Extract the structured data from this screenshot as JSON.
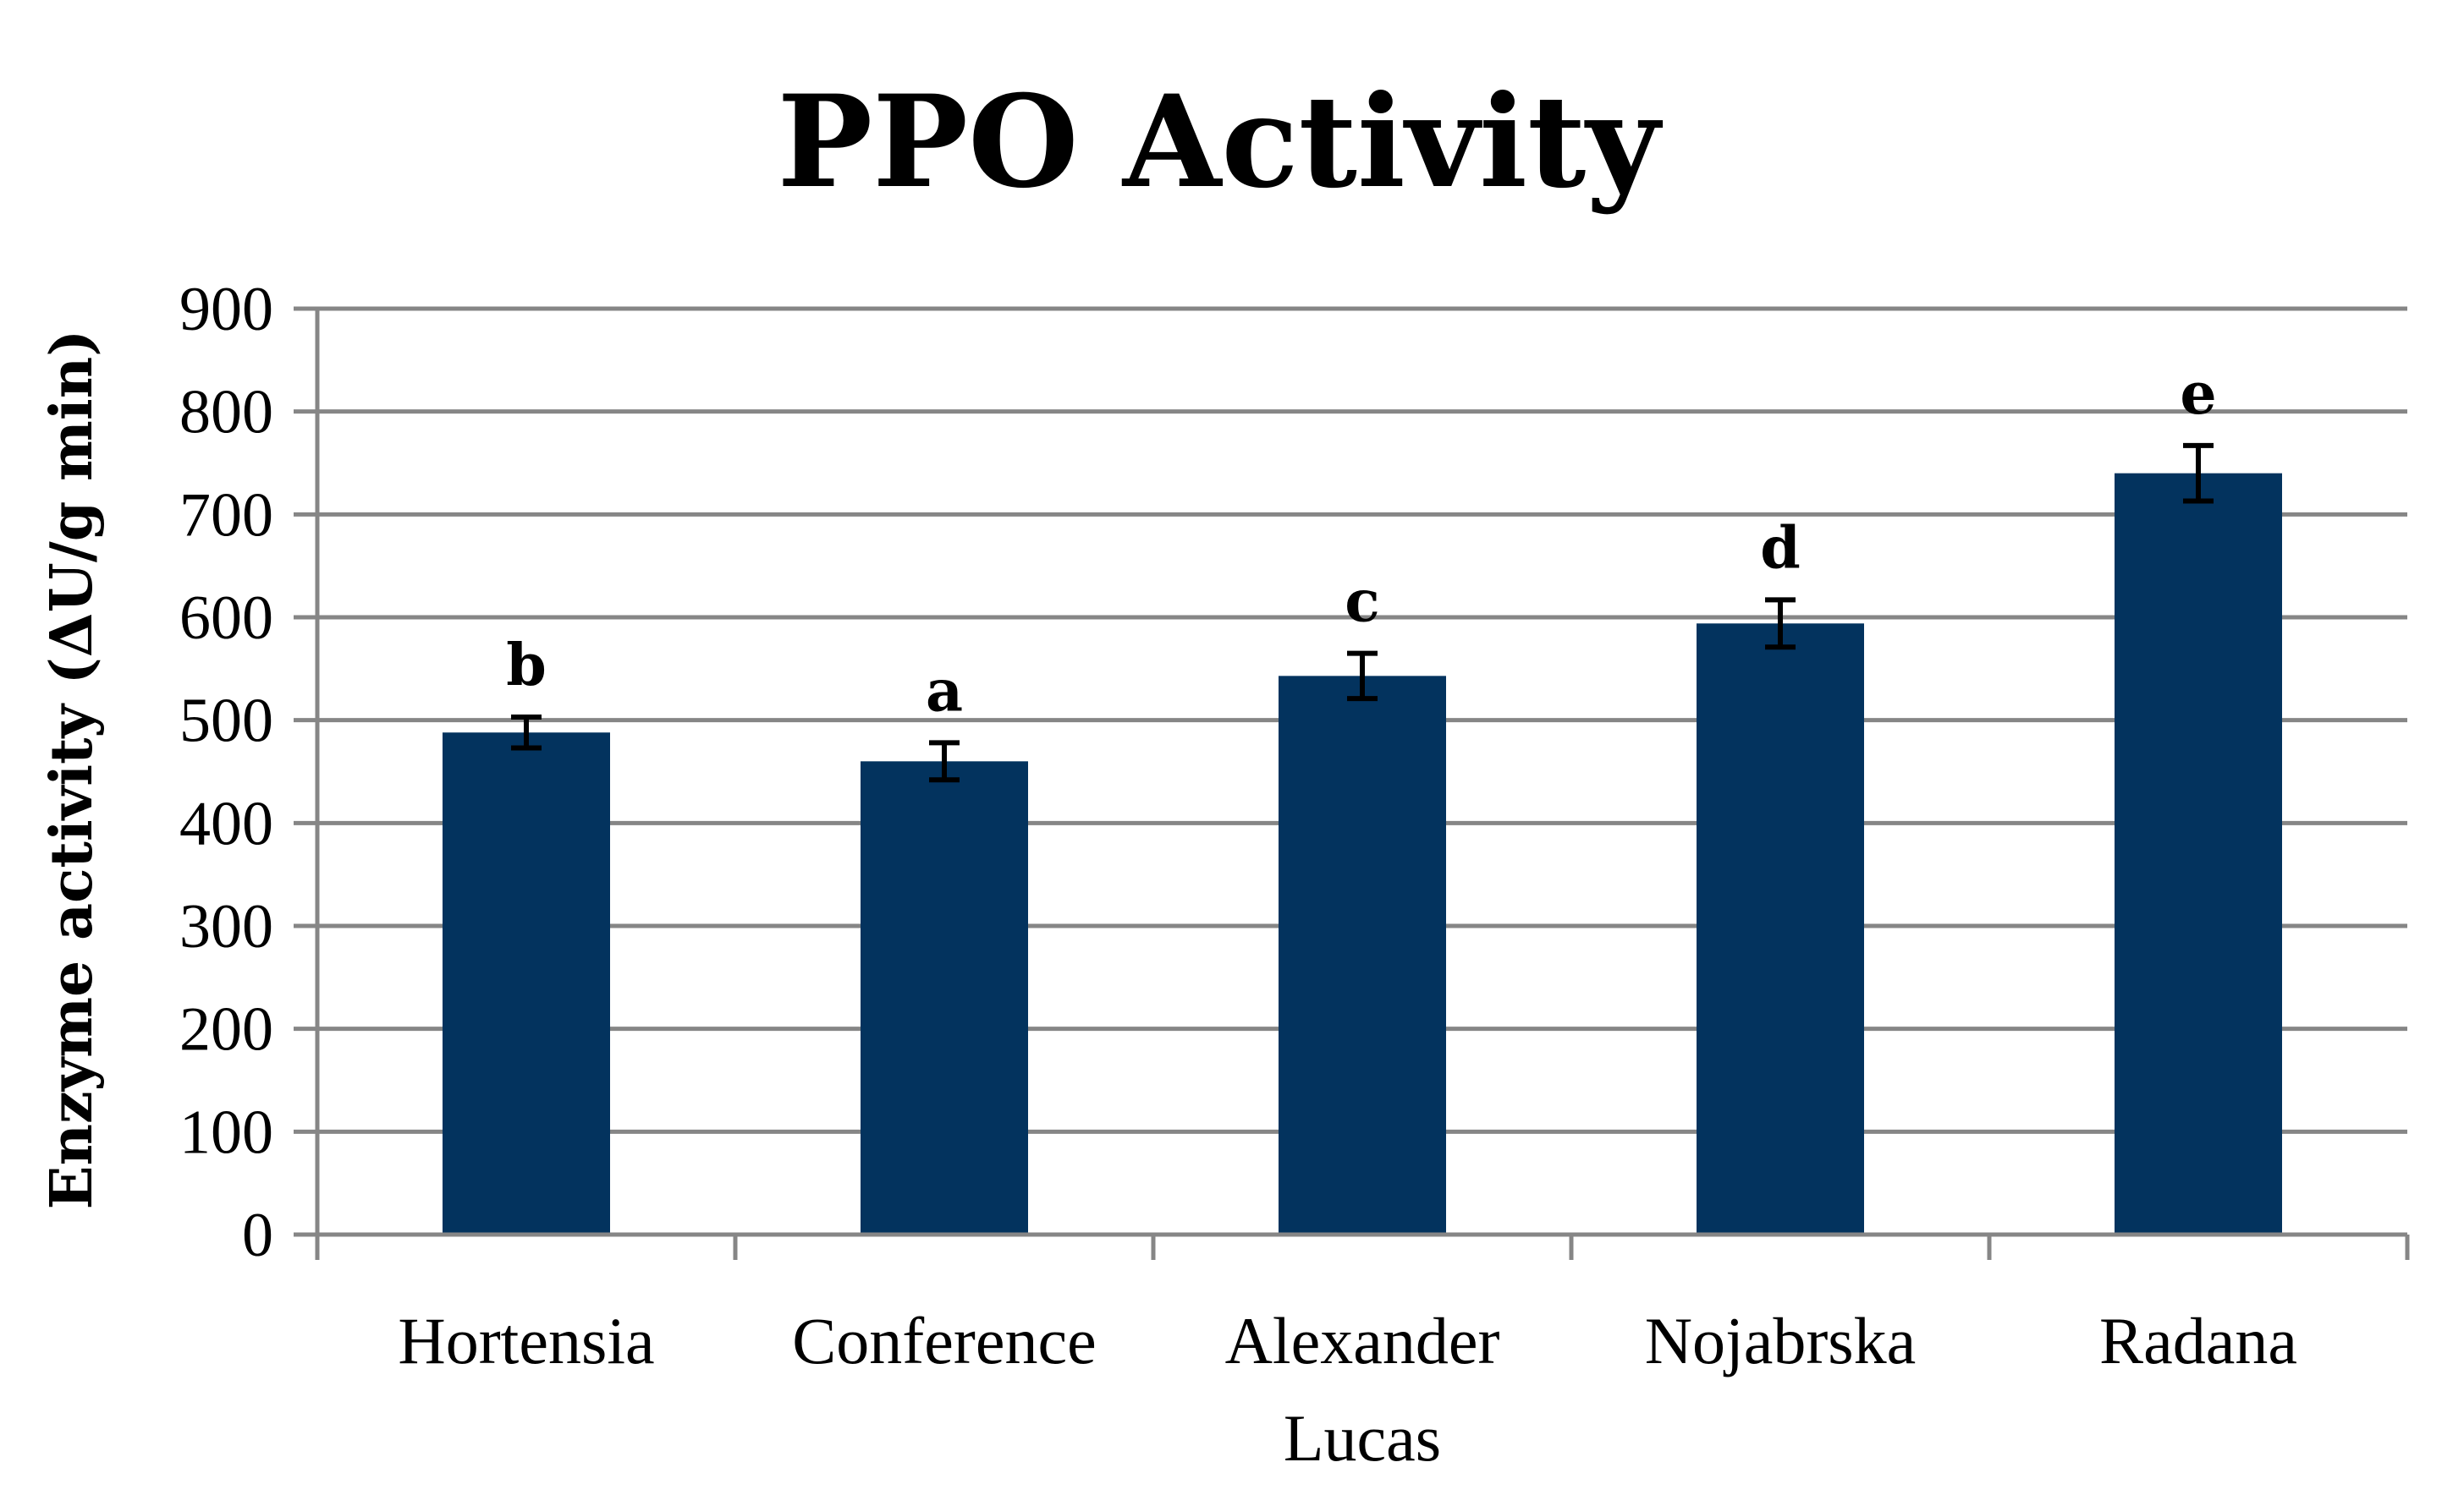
{
  "chart_data": {
    "type": "bar",
    "title": "PPO Activity",
    "ylabel": "Enzyme activity (ΔU/g min)",
    "xlabel": "",
    "ylim": [
      0,
      900
    ],
    "yticks": [
      0,
      100,
      200,
      300,
      400,
      500,
      600,
      700,
      800,
      900
    ],
    "grid": true,
    "categories": [
      [
        "Hortensia"
      ],
      [
        "Conference"
      ],
      [
        "Alexander",
        "Lucas"
      ],
      [
        "Nojabrska"
      ],
      [
        "Radana"
      ]
    ],
    "values": [
      488,
      460,
      543,
      594,
      740
    ],
    "errors": [
      15,
      18,
      22,
      23,
      27
    ],
    "significance_labels": [
      "b",
      "a",
      "c",
      "d",
      "e"
    ],
    "bar_color": "#03335e",
    "grid_color": "#868686",
    "error_bar_color": "#000000"
  }
}
